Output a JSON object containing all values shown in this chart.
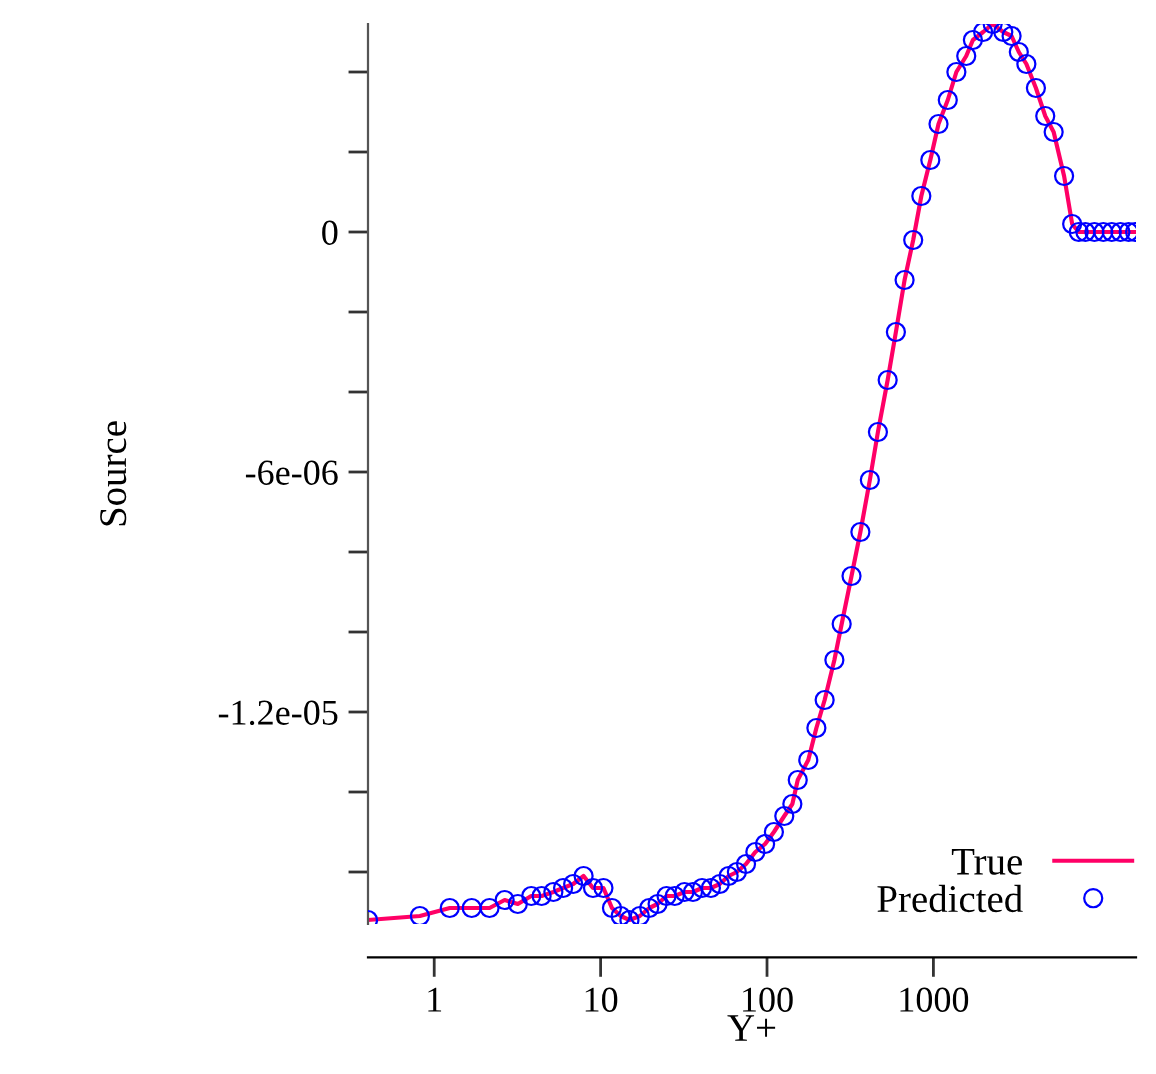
{
  "chart_data": {
    "type": "line",
    "xlabel": "Y+",
    "ylabel": "Source",
    "log": "x",
    "grid": false,
    "legend": "bottom right",
    "xlim": [
      0.4,
      16500
    ],
    "xticks": [
      1,
      10,
      100,
      1000
    ],
    "ylim": [
      -1.73e-05,
      5.2e-06
    ],
    "yticks": [
      {
        "value": 4e-06,
        "label": null
      },
      {
        "value": 2e-06,
        "label": null
      },
      {
        "value": 0,
        "label": "0"
      },
      {
        "value": -2e-06,
        "label": null
      },
      {
        "value": -4e-06,
        "label": null
      },
      {
        "value": -6e-06,
        "label": "-6e-06"
      },
      {
        "value": -8e-06,
        "label": null
      },
      {
        "value": -1e-05,
        "label": null
      },
      {
        "value": -1.2e-05,
        "label": "-1.2e-05"
      },
      {
        "value": -1.4e-05,
        "label": null
      },
      {
        "value": -1.6e-05,
        "label": null
      }
    ],
    "x": [
      0.4,
      0.82,
      1.24,
      1.68,
      2.15,
      2.65,
      3.18,
      3.83,
      4.42,
      5.2,
      5.95,
      6.84,
      7.9,
      9.0,
      10.4,
      11.7,
      13.2,
      14.9,
      17.2,
      19.6,
      22.0,
      24.9,
      27.9,
      31.9,
      35.9,
      40.7,
      46.0,
      52.0,
      58.8,
      65.9,
      74.8,
      85.1,
      97.4,
      110,
      127,
      142,
      153,
      177,
      198,
      222,
      254,
      281,
      322,
      364,
      415,
      464,
      531,
      595,
      671,
      756,
      846,
      958,
      1073,
      1220,
      1374,
      1575,
      1727,
      1990,
      2270,
      2630,
      2950,
      3260,
      3620,
      4130,
      4700,
      5280,
      6100,
      6820,
      7470,
      8190,
      9280,
      10500,
      11800,
      13300,
      14900,
      16300
    ],
    "series": [
      {
        "name": "True",
        "color": "#ff0066",
        "line_style": "solid",
        "marker": "none",
        "values": [
          -1.72e-05,
          -1.71e-05,
          -1.69e-05,
          -1.69e-05,
          -1.69e-05,
          -1.67e-05,
          -1.68e-05,
          -1.66e-05,
          -1.66e-05,
          -1.65e-05,
          -1.64e-05,
          -1.63e-05,
          -1.61e-05,
          -1.64e-05,
          -1.64e-05,
          -1.69e-05,
          -1.71e-05,
          -1.72e-05,
          -1.71e-05,
          -1.69e-05,
          -1.68e-05,
          -1.66e-05,
          -1.66e-05,
          -1.65e-05,
          -1.65e-05,
          -1.64e-05,
          -1.64e-05,
          -1.63e-05,
          -1.61e-05,
          -1.6e-05,
          -1.58e-05,
          -1.55e-05,
          -1.53e-05,
          -1.5e-05,
          -1.46e-05,
          -1.43e-05,
          -1.37e-05,
          -1.32e-05,
          -1.24e-05,
          -1.17e-05,
          -1.07e-05,
          -9.8e-06,
          -8.6e-06,
          -7.5e-06,
          -6.2e-06,
          -5e-06,
          -3.7e-06,
          -2.5e-06,
          -1.2e-06,
          -2e-07,
          9e-07,
          1.8e-06,
          2.7e-06,
          3.3e-06,
          4e-06,
          4.4e-06,
          4.8e-06,
          5e-06,
          5.2e-06,
          5e-06,
          4.9e-06,
          4.5e-06,
          4.2e-06,
          3.6e-06,
          2.9e-06,
          2.5e-06,
          1.4e-06,
          2e-07,
          0,
          0,
          0,
          0,
          0,
          0,
          0,
          0
        ]
      },
      {
        "name": "Predicted",
        "type": "scatter",
        "color": "#0000ff",
        "marker": "circle",
        "values": [
          -1.72e-05,
          -1.71e-05,
          -1.69e-05,
          -1.69e-05,
          -1.69e-05,
          -1.67e-05,
          -1.68e-05,
          -1.66e-05,
          -1.66e-05,
          -1.65e-05,
          -1.64e-05,
          -1.63e-05,
          -1.61e-05,
          -1.64e-05,
          -1.64e-05,
          -1.69e-05,
          -1.71e-05,
          -1.72e-05,
          -1.71e-05,
          -1.69e-05,
          -1.68e-05,
          -1.66e-05,
          -1.66e-05,
          -1.65e-05,
          -1.65e-05,
          -1.64e-05,
          -1.64e-05,
          -1.63e-05,
          -1.61e-05,
          -1.6e-05,
          -1.58e-05,
          -1.55e-05,
          -1.53e-05,
          -1.5e-05,
          -1.46e-05,
          -1.43e-05,
          -1.37e-05,
          -1.32e-05,
          -1.24e-05,
          -1.17e-05,
          -1.07e-05,
          -9.8e-06,
          -8.6e-06,
          -7.5e-06,
          -6.2e-06,
          -5e-06,
          -3.7e-06,
          -2.5e-06,
          -1.2e-06,
          -2e-07,
          9e-07,
          1.8e-06,
          2.7e-06,
          3.3e-06,
          4e-06,
          4.4e-06,
          4.8e-06,
          5e-06,
          5.2e-06,
          5e-06,
          4.9e-06,
          4.5e-06,
          4.2e-06,
          3.6e-06,
          2.9e-06,
          2.5e-06,
          1.4e-06,
          2e-07,
          0,
          0,
          0,
          0,
          0,
          0,
          0,
          0
        ]
      }
    ]
  }
}
